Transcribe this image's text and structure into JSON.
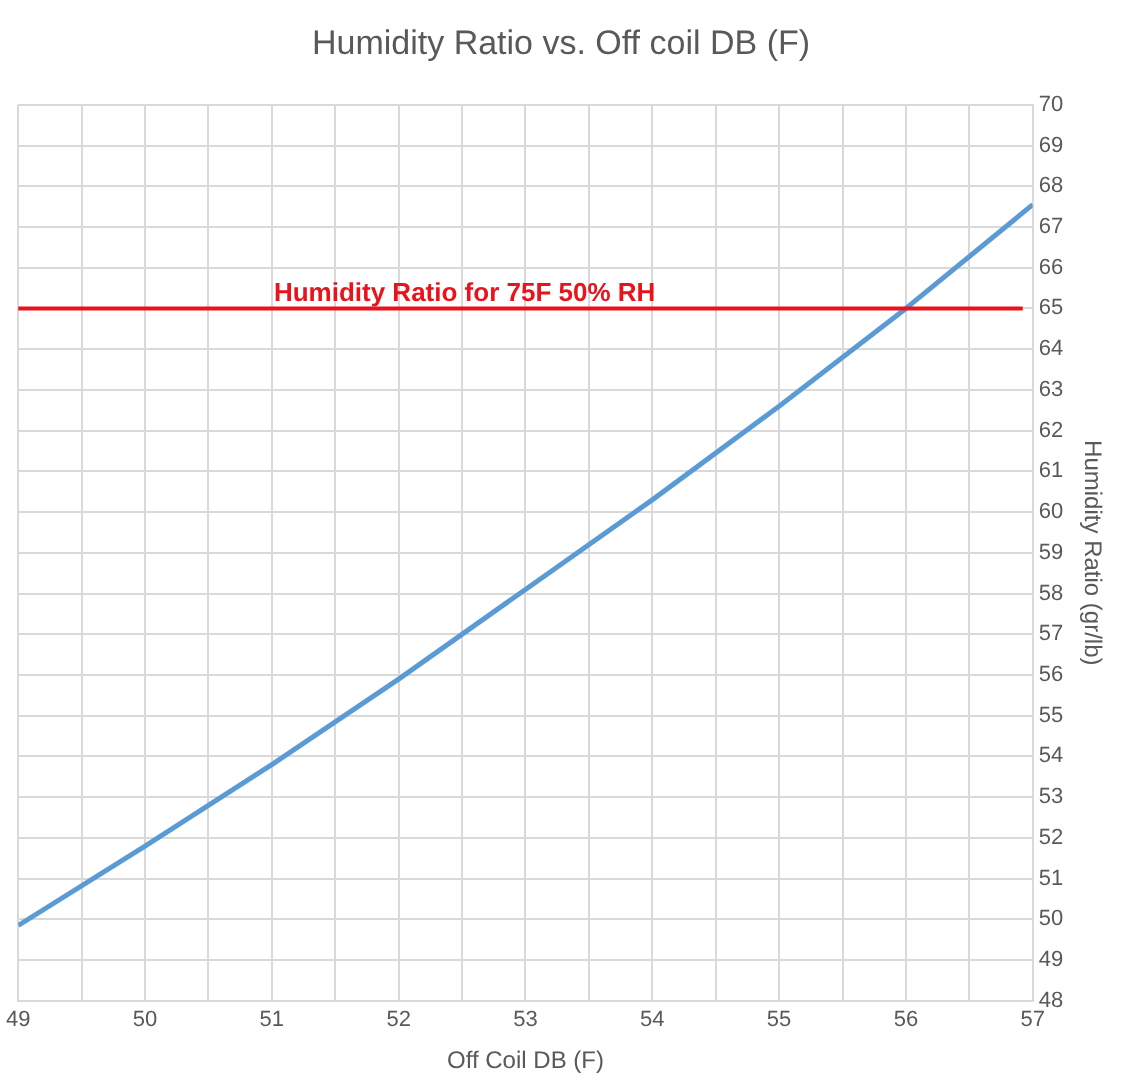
{
  "chart_data": {
    "type": "line",
    "title": "Humidity Ratio vs. Off coil DB (F)",
    "xlabel": "Off Coil DB (F)",
    "ylabel": "Humidity Ratio (gr/lb)",
    "x": [
      49,
      50,
      51,
      52,
      53,
      54,
      55,
      56,
      57
    ],
    "series": [
      {
        "color": "#5b9bd5",
        "values": [
          49.85,
          51.8,
          53.8,
          55.9,
          58.1,
          60.3,
          62.6,
          65.0,
          67.55
        ]
      }
    ],
    "xlim": [
      49,
      57
    ],
    "xticks": [
      49,
      {
        "value": 49.5,
        "label": null
      },
      50,
      {
        "value": 50.5,
        "label": null
      },
      51,
      {
        "value": 51.5,
        "label": null
      },
      52,
      {
        "value": 52.5,
        "label": null
      },
      53,
      {
        "value": 53.5,
        "label": null
      },
      54,
      {
        "value": 54.5,
        "label": null
      },
      55,
      {
        "value": 55.5,
        "label": null
      },
      56,
      {
        "value": 56.5,
        "label": null
      },
      57
    ],
    "ylim": [
      48,
      70
    ],
    "yticks": [
      48,
      49,
      50,
      51,
      52,
      53,
      54,
      55,
      56,
      57,
      58,
      59,
      60,
      61,
      62,
      63,
      64,
      65,
      66,
      67,
      68,
      69,
      70
    ],
    "ref_lines": [
      {
        "axis": "y",
        "value": 65,
        "label": "Humidity Ratio for 75F 50% RH",
        "color": "#e8131b"
      }
    ],
    "grid": true,
    "marker": "none",
    "line_style": "solid",
    "legend": false
  }
}
